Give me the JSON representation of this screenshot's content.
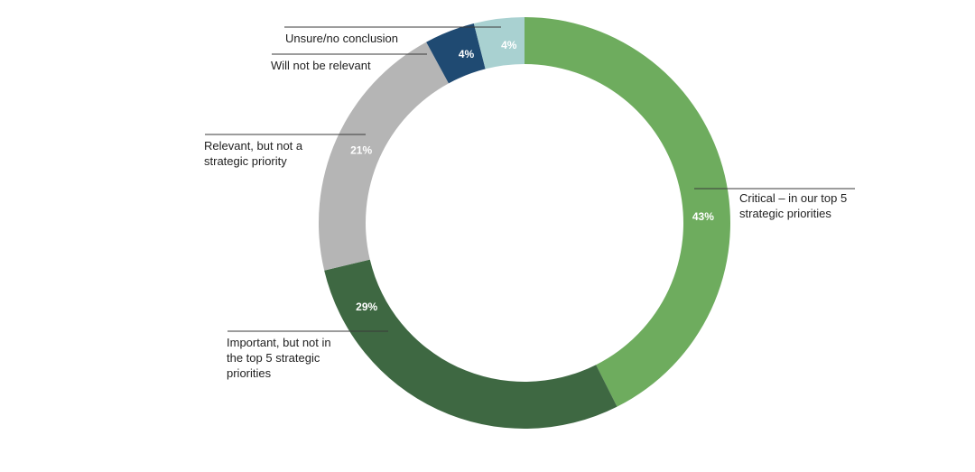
{
  "chart_data": {
    "type": "pie",
    "style": "donut",
    "start": "top, clockwise",
    "slices": [
      {
        "label_lines": [
          "Critical – in  our top 5",
          "strategic priorities"
        ],
        "value": 43,
        "value_label": "43%",
        "color": "#6eac5e"
      },
      {
        "label_lines": [
          "Important, but not in",
          "the top 5 strategic",
          "priorities"
        ],
        "value": 29,
        "value_label": "29%",
        "color": "#3e6842"
      },
      {
        "label_lines": [
          "Relevant, but not a",
          "strategic priority"
        ],
        "value": 21,
        "value_label": "21%",
        "color": "#b5b5b5"
      },
      {
        "label_lines": [
          "Will not be relevant"
        ],
        "value": 4,
        "value_label": "4%",
        "color": "#1f4a72"
      },
      {
        "label_lines": [
          "Unsure/no conclusion"
        ],
        "value": 4,
        "value_label": "4%",
        "color": "#a9d1d1"
      }
    ]
  }
}
